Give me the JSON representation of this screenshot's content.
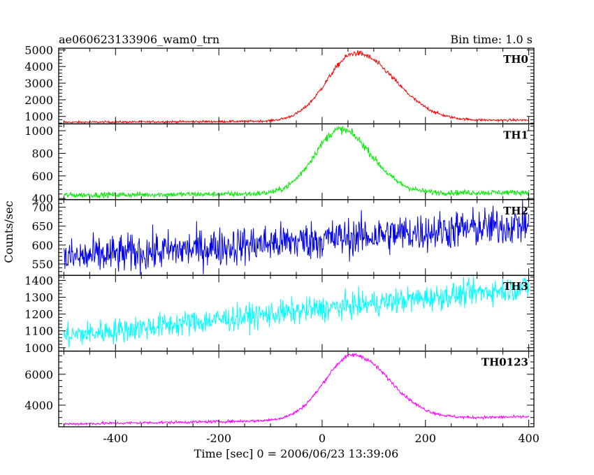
{
  "header": {
    "title": "ae060623133906_wam0_trn",
    "bin_time": "Bin time: 1.0 s"
  },
  "chart_data": {
    "type": "line",
    "title": "ae060623133906_wam0_trn",
    "xlabel": "Time [sec] 0 = 2006/06/23 13:39:06",
    "ylabel": "Counts/sec",
    "xlim": [
      -510,
      410
    ],
    "x_ticks": [
      "-400",
      "-200",
      "0",
      "200",
      "400"
    ],
    "x_tick_values": [
      -400,
      -200,
      0,
      200,
      400
    ],
    "x_range_data": [
      -500,
      400
    ],
    "panels": [
      {
        "name": "TH0",
        "color": "#ff0000",
        "ylim": [
          550,
          5100
        ],
        "y_ticks": [
          "1000",
          "2000",
          "3000",
          "4000",
          "5000"
        ],
        "y_tick_values": [
          1000,
          2000,
          3000,
          4000,
          5000
        ],
        "profile": {
          "baseline_start": 650,
          "baseline_end": 780,
          "peak": 4800,
          "peak_time": 65,
          "rise": 55,
          "decay": 75,
          "noise": 40
        }
      },
      {
        "name": "TH1",
        "color": "#00ee00",
        "ylim": [
          390,
          1060
        ],
        "y_ticks": [
          "400",
          "600",
          "800",
          "1000"
        ],
        "y_tick_values": [
          400,
          600,
          800,
          1000
        ],
        "profile": {
          "baseline_start": 430,
          "baseline_end": 455,
          "peak": 1010,
          "peak_time": 35,
          "rise": 50,
          "decay": 60,
          "noise": 15
        }
      },
      {
        "name": "TH2",
        "color": "#0000ee",
        "ylim": [
          520,
          720
        ],
        "y_ticks": [
          "550",
          "600",
          "650",
          "700"
        ],
        "y_tick_values": [
          550,
          600,
          650,
          700
        ],
        "profile": {
          "baseline_start": 565,
          "baseline_end": 655,
          "peak": 0,
          "peak_time": 0,
          "rise": 50,
          "decay": 50,
          "noise": 26
        }
      },
      {
        "name": "TH3",
        "color": "#00ffff",
        "ylim": [
          980,
          1430
        ],
        "y_ticks": [
          "1000",
          "1100",
          "1200",
          "1300",
          "1400"
        ],
        "y_tick_values": [
          1000,
          1100,
          1200,
          1300,
          1400
        ],
        "profile": {
          "baseline_start": 1070,
          "baseline_end": 1360,
          "peak": 0,
          "peak_time": 0,
          "rise": 50,
          "decay": 50,
          "noise": 38
        }
      },
      {
        "name": "TH0123",
        "color": "#ff00ff",
        "ylim": [
          2600,
          7500
        ],
        "y_ticks": [
          "4000",
          "6000"
        ],
        "y_tick_values": [
          4000,
          6000
        ],
        "profile": {
          "baseline_start": 2780,
          "baseline_end": 3250,
          "peak": 7250,
          "peak_time": 60,
          "rise": 55,
          "decay": 70,
          "noise": 55
        }
      }
    ]
  }
}
